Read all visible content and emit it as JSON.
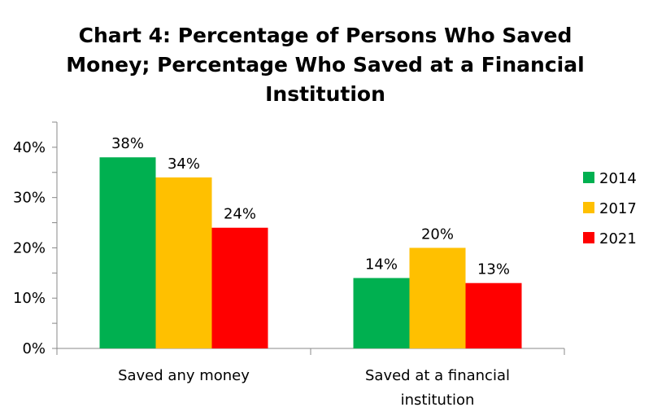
{
  "chart_data": {
    "type": "bar",
    "title": "Chart 4: Percentage of Persons Who Saved Money; Percentage Who Saved at a Financial Institution",
    "title_lines": [
      "Chart 4: Percentage of Persons Who Saved",
      "Money; Percentage Who Saved at a Financial",
      "Institution"
    ],
    "categories": [
      "Saved any money",
      "Saved at a financial institution"
    ],
    "category_lines": [
      [
        "Saved any money"
      ],
      [
        "Saved at a financial",
        "institution"
      ]
    ],
    "series": [
      {
        "name": "2014",
        "color": "#00b050",
        "values": [
          38,
          14
        ],
        "labels": [
          "38%",
          "14%"
        ]
      },
      {
        "name": "2017",
        "color": "#ffc000",
        "values": [
          34,
          20
        ],
        "labels": [
          "34%",
          "20%"
        ]
      },
      {
        "name": "2021",
        "color": "#ff0000",
        "values": [
          24,
          13
        ],
        "labels": [
          "24%",
          "13%"
        ]
      }
    ],
    "yticks": [
      0,
      10,
      20,
      30,
      40
    ],
    "ytick_labels": [
      "0%",
      "10%",
      "20%",
      "30%",
      "40%"
    ],
    "ylim": [
      0,
      45
    ],
    "grid": false,
    "legend": "right"
  }
}
